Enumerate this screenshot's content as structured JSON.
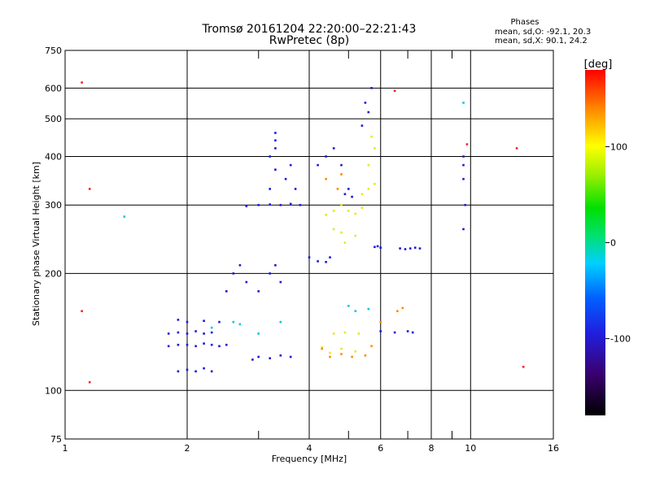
{
  "chart_data": {
    "type": "scatter",
    "title": "Tromsø 20161204 22:20:00–22:21:43",
    "subtitle": "RwPretec (8p)",
    "xlabel": "Frequency [MHz]",
    "ylabel": "Stationary phase Virtual Height [km]",
    "x_scale": "log",
    "y_scale": "log",
    "xlim": [
      1,
      16
    ],
    "ylim": [
      75,
      750
    ],
    "grid": true,
    "x_ticks": [
      1,
      2,
      4,
      6,
      8,
      10,
      16
    ],
    "x_tick_labels": [
      "1",
      "2",
      "4",
      "6",
      "8",
      "10",
      "16"
    ],
    "x_minor_ticks": [
      3,
      5,
      7,
      9
    ],
    "y_ticks": [
      75,
      100,
      200,
      300,
      400,
      500,
      600,
      750
    ],
    "y_tick_labels": [
      "75",
      "100",
      "200",
      "300",
      "400",
      "500",
      "600",
      "750"
    ],
    "stats": {
      "heading": "Phases",
      "line_o": "mean, sd,O: -92.1, 20.3",
      "line_x": "mean, sd,X:  90.1, 24.2"
    },
    "colorbar": {
      "label": "[deg]",
      "range": [
        -180,
        180
      ],
      "ticks": [
        100,
        0,
        -100
      ],
      "tick_labels": [
        "100",
        "0",
        "-100"
      ]
    },
    "series": [
      {
        "points": [
          [
            1.8,
            130
          ],
          [
            1.9,
            131
          ],
          [
            2.0,
            131
          ],
          [
            2.1,
            130
          ],
          [
            2.2,
            132
          ],
          [
            2.3,
            131
          ],
          [
            2.4,
            130
          ],
          [
            2.5,
            131
          ],
          [
            1.8,
            140
          ],
          [
            1.9,
            141
          ],
          [
            2.0,
            140
          ],
          [
            2.1,
            142
          ],
          [
            2.2,
            140
          ],
          [
            2.3,
            141
          ],
          [
            1.9,
            152
          ],
          [
            2.0,
            150
          ],
          [
            2.2,
            151
          ],
          [
            2.4,
            150
          ],
          [
            1.9,
            112
          ],
          [
            2.0,
            113
          ],
          [
            2.1,
            112
          ],
          [
            2.2,
            114
          ],
          [
            2.3,
            112
          ],
          [
            2.8,
            298
          ],
          [
            3.0,
            300
          ],
          [
            3.2,
            301
          ],
          [
            3.4,
            300
          ],
          [
            3.6,
            302
          ],
          [
            3.8,
            300
          ],
          [
            3.2,
            330
          ],
          [
            3.3,
            370
          ],
          [
            3.3,
            420
          ],
          [
            3.3,
            460
          ],
          [
            3.2,
            400
          ],
          [
            3.3,
            440
          ],
          [
            3.5,
            350
          ],
          [
            3.6,
            380
          ],
          [
            3.7,
            330
          ],
          [
            2.5,
            180
          ],
          [
            2.6,
            200
          ],
          [
            2.7,
            210
          ],
          [
            2.8,
            190
          ],
          [
            3.0,
            180
          ],
          [
            3.2,
            200
          ],
          [
            3.3,
            210
          ],
          [
            3.4,
            190
          ],
          [
            2.9,
            120
          ],
          [
            3.0,
            122
          ],
          [
            3.2,
            121
          ],
          [
            3.4,
            123
          ],
          [
            3.6,
            122
          ],
          [
            4.2,
            380
          ],
          [
            4.4,
            400
          ],
          [
            4.6,
            420
          ],
          [
            4.8,
            380
          ],
          [
            4.0,
            220
          ],
          [
            4.2,
            215
          ],
          [
            4.4,
            214
          ],
          [
            4.5,
            220
          ],
          [
            4.9,
            320
          ],
          [
            5.0,
            330
          ],
          [
            5.1,
            315
          ],
          [
            5.4,
            480
          ],
          [
            5.5,
            550
          ],
          [
            5.6,
            520
          ],
          [
            5.7,
            600
          ],
          [
            5.8,
            234
          ],
          [
            5.9,
            235
          ],
          [
            6.0,
            233
          ],
          [
            6.7,
            232
          ],
          [
            6.9,
            231
          ],
          [
            7.1,
            232
          ],
          [
            7.3,
            233
          ],
          [
            7.5,
            232
          ],
          [
            6.0,
            142
          ],
          [
            6.5,
            141
          ],
          [
            7.0,
            142
          ],
          [
            7.2,
            141
          ],
          [
            9.6,
            400
          ],
          [
            9.6,
            350
          ],
          [
            9.7,
            300
          ],
          [
            9.6,
            260
          ],
          [
            9.6,
            380
          ]
        ]
      },
      {
        "points": [
          [
            4.4,
            283
          ],
          [
            4.6,
            290
          ],
          [
            4.8,
            300
          ],
          [
            5.0,
            290
          ],
          [
            5.2,
            285
          ],
          [
            5.4,
            295
          ],
          [
            5.4,
            320
          ],
          [
            5.6,
            330
          ],
          [
            5.8,
            340
          ],
          [
            5.6,
            380
          ],
          [
            5.8,
            420
          ],
          [
            5.7,
            450
          ],
          [
            4.6,
            260
          ],
          [
            4.8,
            255
          ],
          [
            4.9,
            240
          ],
          [
            5.2,
            250
          ],
          [
            4.3,
            129
          ],
          [
            4.5,
            125
          ],
          [
            4.8,
            128
          ],
          [
            5.2,
            126
          ],
          [
            4.6,
            140
          ],
          [
            4.9,
            141
          ],
          [
            5.3,
            140
          ]
        ]
      },
      {
        "points": [
          [
            4.3,
            128
          ],
          [
            4.5,
            122
          ],
          [
            4.8,
            124
          ],
          [
            5.1,
            122
          ],
          [
            5.5,
            123
          ],
          [
            4.4,
            350
          ],
          [
            4.7,
            330
          ],
          [
            4.8,
            360
          ],
          [
            5.7,
            130
          ],
          [
            6.0,
            150
          ],
          [
            6.6,
            160
          ],
          [
            6.8,
            163
          ]
        ]
      },
      {
        "points": [
          [
            2.3,
            145
          ],
          [
            2.6,
            150
          ],
          [
            2.7,
            148
          ],
          [
            3.0,
            140
          ],
          [
            3.4,
            150
          ],
          [
            5.0,
            165
          ],
          [
            5.2,
            160
          ],
          [
            5.6,
            162
          ],
          [
            9.6,
            550
          ],
          [
            1.4,
            280
          ]
        ]
      },
      {
        "points": [
          [
            1.15,
            105
          ],
          [
            1.1,
            160
          ],
          [
            1.15,
            330
          ],
          [
            1.1,
            620
          ],
          [
            6.5,
            590
          ],
          [
            9.8,
            430
          ],
          [
            13,
            420
          ],
          [
            13.5,
            115
          ]
        ]
      }
    ]
  }
}
